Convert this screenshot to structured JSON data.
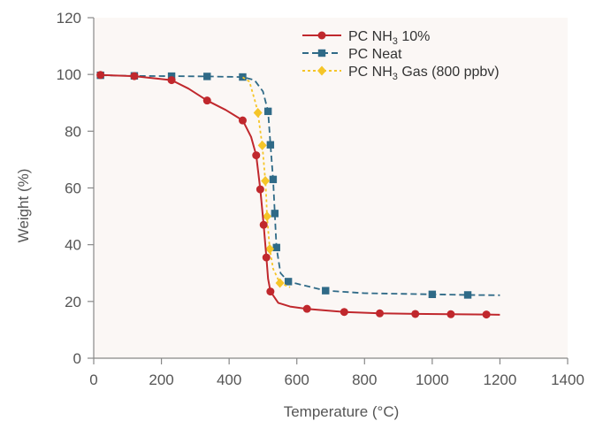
{
  "chart_data": {
    "type": "line",
    "title": "",
    "xlabel": "Temperature (°C)",
    "ylabel": "Weight (%)",
    "xlim": [
      0,
      1400
    ],
    "ylim": [
      0,
      120
    ],
    "x_ticks": [
      0,
      200,
      400,
      600,
      800,
      1000,
      1200,
      1400
    ],
    "y_ticks": [
      0,
      20,
      40,
      60,
      80,
      100,
      120
    ],
    "legend_position": "top-right",
    "grid": false,
    "series": [
      {
        "name": "PC NH3 10%",
        "legend_parts": [
          "PC NH",
          "3",
          " 10%"
        ],
        "color": "#c0282d",
        "line_style": "solid",
        "marker": "circle",
        "curve": [
          [
            20,
            99.8
          ],
          [
            120,
            99.4
          ],
          [
            230,
            98.0
          ],
          [
            280,
            95
          ],
          [
            335,
            90.8
          ],
          [
            390,
            87.5
          ],
          [
            440,
            83.8
          ],
          [
            465,
            78
          ],
          [
            480,
            71.5
          ],
          [
            492,
            59.5
          ],
          [
            502,
            47
          ],
          [
            510,
            35.5
          ],
          [
            515,
            28
          ],
          [
            522,
            23.5
          ],
          [
            545,
            19.5
          ],
          [
            580,
            18.2
          ],
          [
            630,
            17.4
          ],
          [
            740,
            16.3
          ],
          [
            845,
            15.8
          ],
          [
            950,
            15.6
          ],
          [
            1055,
            15.5
          ],
          [
            1160,
            15.4
          ],
          [
            1200,
            15.3
          ]
        ],
        "points": [
          [
            20,
            99.8
          ],
          [
            120,
            99.4
          ],
          [
            230,
            98.0
          ],
          [
            335,
            90.8
          ],
          [
            440,
            83.8
          ],
          [
            480,
            71.5
          ],
          [
            492,
            59.5
          ],
          [
            502,
            47
          ],
          [
            510,
            35.5
          ],
          [
            522,
            23.5
          ],
          [
            630,
            17.4
          ],
          [
            740,
            16.3
          ],
          [
            845,
            15.8
          ],
          [
            950,
            15.6
          ],
          [
            1055,
            15.5
          ],
          [
            1160,
            15.4
          ]
        ]
      },
      {
        "name": "PC Neat",
        "legend_parts": [
          "PC Neat"
        ],
        "color": "#2f6a87",
        "line_style": "dashed",
        "marker": "square",
        "curve": [
          [
            20,
            99.7
          ],
          [
            120,
            99.5
          ],
          [
            230,
            99.4
          ],
          [
            335,
            99.3
          ],
          [
            440,
            99.1
          ],
          [
            475,
            98
          ],
          [
            500,
            94
          ],
          [
            515,
            87
          ],
          [
            522,
            75.2
          ],
          [
            530,
            63
          ],
          [
            535,
            51
          ],
          [
            540,
            39
          ],
          [
            552,
            30
          ],
          [
            575,
            27
          ],
          [
            685,
            23.8
          ],
          [
            800,
            22.9
          ],
          [
            1000,
            22.5
          ],
          [
            1105,
            22.3
          ],
          [
            1200,
            22.2
          ]
        ],
        "points": [
          [
            20,
            99.7
          ],
          [
            120,
            99.5
          ],
          [
            230,
            99.4
          ],
          [
            335,
            99.3
          ],
          [
            440,
            99.1
          ],
          [
            515,
            87
          ],
          [
            522,
            75.2
          ],
          [
            530,
            63
          ],
          [
            535,
            51
          ],
          [
            540,
            39
          ],
          [
            575,
            27
          ],
          [
            685,
            23.8
          ],
          [
            1000,
            22.5
          ],
          [
            1105,
            22.3
          ]
        ]
      },
      {
        "name": "PC NH3 Gas (800 ppbv)",
        "legend_parts": [
          "PC NH",
          "3",
          " Gas (800 ppbv)"
        ],
        "color": "#f5c528",
        "line_style": "dotted",
        "marker": "diamond",
        "curve": [
          [
            440,
            99
          ],
          [
            460,
            97.5
          ],
          [
            478,
            90
          ],
          [
            485,
            86.5
          ],
          [
            492,
            80
          ],
          [
            498,
            75
          ],
          [
            503,
            68
          ],
          [
            507,
            62.5
          ],
          [
            510,
            56
          ],
          [
            512,
            50
          ],
          [
            516,
            44
          ],
          [
            520,
            38.5
          ],
          [
            530,
            31.5
          ],
          [
            550,
            26.5
          ],
          [
            580,
            25
          ]
        ],
        "points": [
          [
            485,
            86.5
          ],
          [
            498,
            75
          ],
          [
            507,
            62.5
          ],
          [
            512,
            50
          ],
          [
            520,
            38.5
          ],
          [
            550,
            26.5
          ]
        ]
      }
    ]
  }
}
